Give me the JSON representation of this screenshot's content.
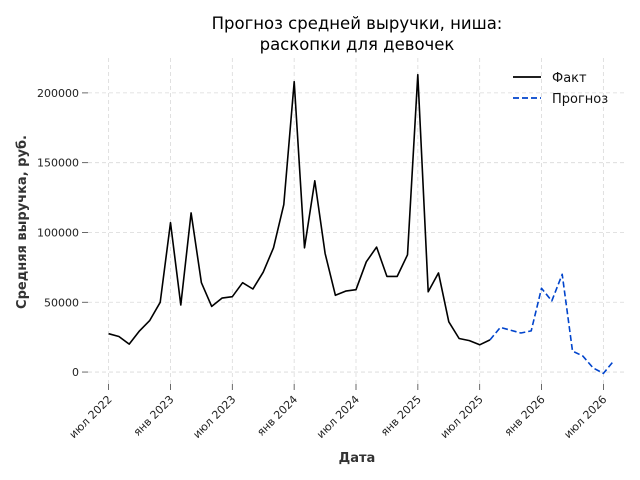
{
  "chart_data": {
    "type": "line",
    "title": [
      "Прогноз средней выручки, ниша:",
      "раскопки для девочек"
    ],
    "xlabel": "Дата",
    "ylabel": "Средняя выручка, руб.",
    "ylim": [
      -10000,
      225000
    ],
    "xlim": [
      "2022-05",
      "2026-09"
    ],
    "yticks": [
      0,
      50000,
      100000,
      150000,
      200000
    ],
    "ytick_labels": [
      "0",
      "50000",
      "100000",
      "150000",
      "200000"
    ],
    "xticks": [
      "2022-07",
      "2023-01",
      "2023-07",
      "2024-01",
      "2024-07",
      "2025-01",
      "2025-07",
      "2026-01",
      "2026-07"
    ],
    "xtick_labels": [
      "июл 2022",
      "янв 2023",
      "июл 2023",
      "янв 2024",
      "июл 2024",
      "янв 2025",
      "июл 2025",
      "янв 2026",
      "июл 2026"
    ],
    "grid": true,
    "legend_position": "top-right",
    "series": [
      {
        "name": "Факт",
        "color": "#000000",
        "style": "solid",
        "x": [
          "2022-07",
          "2022-08",
          "2022-09",
          "2022-10",
          "2022-11",
          "2022-12",
          "2023-01",
          "2023-02",
          "2023-03",
          "2023-04",
          "2023-05",
          "2023-06",
          "2023-07",
          "2023-08",
          "2023-09",
          "2023-10",
          "2023-11",
          "2023-12",
          "2024-01",
          "2024-02",
          "2024-03",
          "2024-04",
          "2024-05",
          "2024-06",
          "2024-07",
          "2024-08",
          "2024-09",
          "2024-10",
          "2024-11",
          "2024-12",
          "2025-01",
          "2025-02",
          "2025-03",
          "2025-04",
          "2025-05",
          "2025-06",
          "2025-07",
          "2025-08"
        ],
        "y": [
          27500,
          25500,
          20000,
          29500,
          37000,
          50000,
          107000,
          48000,
          114000,
          64000,
          47000,
          53000,
          54000,
          64000,
          59500,
          71500,
          89000,
          120000,
          208000,
          89000,
          137000,
          85000,
          55000,
          58000,
          59000,
          79000,
          89500,
          68500,
          68500,
          84000,
          213000,
          57500,
          71000,
          36000,
          24000,
          22500,
          19500,
          23000
        ]
      },
      {
        "name": "Прогноз",
        "color": "#0044cc",
        "style": "dashed",
        "x": [
          "2025-08",
          "2025-09",
          "2025-10",
          "2025-11",
          "2025-12",
          "2026-01",
          "2026-02",
          "2026-03",
          "2026-04",
          "2026-05",
          "2026-06",
          "2026-07",
          "2026-08"
        ],
        "y": [
          23000,
          32000,
          30000,
          28000,
          29500,
          60000,
          51000,
          70000,
          15000,
          11500,
          3000,
          -1000,
          8000
        ]
      }
    ]
  }
}
